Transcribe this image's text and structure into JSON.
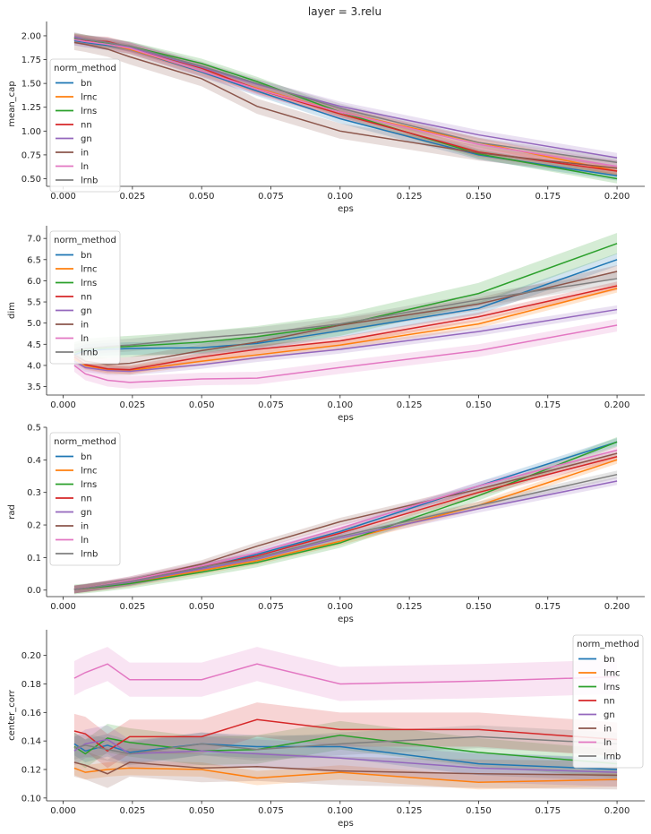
{
  "figure_title": "layer = 3.relu",
  "colors": {
    "bn": "#1f77b4",
    "lrnc": "#ff7f0e",
    "lrns": "#2ca02c",
    "nn": "#d62728",
    "gn": "#9467bd",
    "in": "#8c564b",
    "ln": "#e377c2",
    "lrnb": "#7f7f7f"
  },
  "chart_data": [
    {
      "type": "line",
      "xlabel": "eps",
      "ylabel": "mean_cap",
      "xlim": [
        -0.006,
        0.21
      ],
      "ylim": [
        0.42,
        2.15
      ],
      "xticks": [
        "0.000",
        "0.025",
        "0.050",
        "0.075",
        "0.100",
        "0.125",
        "0.150",
        "0.175",
        "0.200"
      ],
      "yticks": [
        "0.50",
        "0.75",
        "1.00",
        "1.25",
        "1.50",
        "1.75",
        "2.00"
      ],
      "legend_title": "norm_method",
      "legend_loc": "center-left",
      "x": [
        0.004,
        0.008,
        0.016,
        0.024,
        0.05,
        0.07,
        0.1,
        0.15,
        0.2
      ],
      "series": [
        {
          "name": "bn",
          "values": [
            1.95,
            1.93,
            1.9,
            1.86,
            1.62,
            1.42,
            1.13,
            0.75,
            0.53
          ],
          "band": 0.05
        },
        {
          "name": "lrnc",
          "values": [
            1.98,
            1.96,
            1.91,
            1.86,
            1.63,
            1.45,
            1.2,
            0.88,
            0.58
          ],
          "band": 0.05
        },
        {
          "name": "lrns",
          "values": [
            1.98,
            1.96,
            1.92,
            1.89,
            1.71,
            1.52,
            1.2,
            0.76,
            0.5
          ],
          "band": 0.05
        },
        {
          "name": "nn",
          "values": [
            1.97,
            1.95,
            1.94,
            1.88,
            1.66,
            1.44,
            1.18,
            0.78,
            0.58
          ],
          "band": 0.05
        },
        {
          "name": "gn",
          "values": [
            1.99,
            1.96,
            1.93,
            1.88,
            1.67,
            1.49,
            1.26,
            0.96,
            0.72
          ],
          "band": 0.05
        },
        {
          "name": "in",
          "values": [
            1.93,
            1.91,
            1.86,
            1.78,
            1.55,
            1.26,
            1.0,
            0.77,
            0.61
          ],
          "band": 0.08
        },
        {
          "name": "ln",
          "values": [
            1.96,
            1.94,
            1.91,
            1.87,
            1.63,
            1.44,
            1.2,
            0.86,
            0.63
          ],
          "band": 0.06
        },
        {
          "name": "lrnb",
          "values": [
            1.97,
            1.96,
            1.93,
            1.89,
            1.68,
            1.5,
            1.24,
            0.88,
            0.67
          ],
          "band": 0.05
        }
      ]
    },
    {
      "type": "line",
      "xlabel": "eps",
      "ylabel": "dim",
      "xlim": [
        -0.006,
        0.21
      ],
      "ylim": [
        3.3,
        7.3
      ],
      "xticks": [
        "0.000",
        "0.025",
        "0.050",
        "0.075",
        "0.100",
        "0.125",
        "0.150",
        "0.175",
        "0.200"
      ],
      "yticks": [
        "3.5",
        "4.0",
        "4.5",
        "5.0",
        "5.5",
        "6.0",
        "6.5",
        "7.0"
      ],
      "legend_title": "norm_method",
      "legend_loc": "upper-left",
      "x": [
        0.004,
        0.008,
        0.016,
        0.024,
        0.05,
        0.07,
        0.1,
        0.15,
        0.2
      ],
      "series": [
        {
          "name": "bn",
          "values": [
            4.25,
            4.35,
            4.38,
            4.4,
            4.42,
            4.52,
            4.82,
            5.35,
            6.5
          ],
          "band": 0.15
        },
        {
          "name": "lrnc",
          "values": [
            4.15,
            4.0,
            3.9,
            3.88,
            4.1,
            4.25,
            4.48,
            4.98,
            5.82
          ],
          "band": 0.1
        },
        {
          "name": "lrns",
          "values": [
            4.3,
            4.38,
            4.42,
            4.45,
            4.55,
            4.68,
            4.95,
            5.7,
            6.88
          ],
          "band": 0.25
        },
        {
          "name": "nn",
          "values": [
            4.2,
            4.02,
            3.92,
            3.9,
            4.2,
            4.38,
            4.58,
            5.15,
            5.88
          ],
          "band": 0.1
        },
        {
          "name": "gn",
          "values": [
            4.1,
            3.95,
            3.88,
            3.86,
            4.02,
            4.18,
            4.38,
            4.8,
            5.32
          ],
          "band": 0.1
        },
        {
          "name": "in",
          "values": [
            4.25,
            4.1,
            4.02,
            4.05,
            4.35,
            4.55,
            4.95,
            5.45,
            6.22
          ],
          "band": 0.15
        },
        {
          "name": "ln",
          "values": [
            4.0,
            3.8,
            3.65,
            3.6,
            3.68,
            3.7,
            3.95,
            4.35,
            4.95
          ],
          "band": 0.15
        },
        {
          "name": "lrnb",
          "values": [
            4.35,
            4.4,
            4.45,
            4.48,
            4.65,
            4.75,
            4.98,
            5.55,
            6.05
          ],
          "band": 0.15
        }
      ]
    },
    {
      "type": "line",
      "xlabel": "eps",
      "ylabel": "rad",
      "xlim": [
        -0.006,
        0.21
      ],
      "ylim": [
        -0.02,
        0.5
      ],
      "xticks": [
        "0.000",
        "0.025",
        "0.050",
        "0.075",
        "0.100",
        "0.125",
        "0.150",
        "0.175",
        "0.200"
      ],
      "yticks": [
        "0.0",
        "0.1",
        "0.2",
        "0.3",
        "0.4",
        "0.5"
      ],
      "legend_title": "norm_method",
      "legend_loc": "upper-left",
      "x": [
        0.004,
        0.008,
        0.016,
        0.024,
        0.05,
        0.07,
        0.1,
        0.15,
        0.2
      ],
      "series": [
        {
          "name": "bn",
          "values": [
            0.002,
            0.006,
            0.015,
            0.025,
            0.068,
            0.11,
            0.18,
            0.32,
            0.455
          ],
          "band": 0.012
        },
        {
          "name": "lrnc",
          "values": [
            0.002,
            0.005,
            0.013,
            0.022,
            0.06,
            0.09,
            0.15,
            0.26,
            0.4
          ],
          "band": 0.012
        },
        {
          "name": "lrns",
          "values": [
            0.002,
            0.005,
            0.012,
            0.02,
            0.055,
            0.085,
            0.145,
            0.29,
            0.455
          ],
          "band": 0.015
        },
        {
          "name": "nn",
          "values": [
            0.002,
            0.006,
            0.016,
            0.026,
            0.07,
            0.105,
            0.175,
            0.3,
            0.41
          ],
          "band": 0.012
        },
        {
          "name": "gn",
          "values": [
            0.002,
            0.006,
            0.015,
            0.024,
            0.065,
            0.095,
            0.16,
            0.25,
            0.335
          ],
          "band": 0.012
        },
        {
          "name": "in",
          "values": [
            0.002,
            0.007,
            0.018,
            0.03,
            0.08,
            0.135,
            0.21,
            0.31,
            0.42
          ],
          "band": 0.012
        },
        {
          "name": "ln",
          "values": [
            0.002,
            0.007,
            0.018,
            0.03,
            0.075,
            0.115,
            0.19,
            0.32,
            0.43
          ],
          "band": 0.012
        },
        {
          "name": "lrnb",
          "values": [
            0.002,
            0.006,
            0.016,
            0.026,
            0.07,
            0.1,
            0.165,
            0.26,
            0.355
          ],
          "band": 0.012
        }
      ]
    },
    {
      "type": "line",
      "xlabel": "eps",
      "ylabel": "center_corr",
      "xlim": [
        -0.006,
        0.21
      ],
      "ylim": [
        0.098,
        0.218
      ],
      "xticks": [
        "0.000",
        "0.025",
        "0.050",
        "0.075",
        "0.100",
        "0.125",
        "0.150",
        "0.175",
        "0.200"
      ],
      "yticks": [
        "0.10",
        "0.12",
        "0.14",
        "0.16",
        "0.18",
        "0.20"
      ],
      "legend_title": "norm_method",
      "legend_loc": "upper-right",
      "x": [
        0.004,
        0.008,
        0.016,
        0.024,
        0.05,
        0.07,
        0.1,
        0.15,
        0.2
      ],
      "series": [
        {
          "name": "bn",
          "values": [
            0.138,
            0.133,
            0.137,
            0.132,
            0.138,
            0.136,
            0.136,
            0.124,
            0.12
          ],
          "band": 0.008
        },
        {
          "name": "lrnc",
          "values": [
            0.121,
            0.118,
            0.12,
            0.121,
            0.12,
            0.114,
            0.118,
            0.111,
            0.113
          ],
          "band": 0.005
        },
        {
          "name": "lrns",
          "values": [
            0.136,
            0.131,
            0.142,
            0.139,
            0.133,
            0.134,
            0.144,
            0.132,
            0.124
          ],
          "band": 0.01
        },
        {
          "name": "nn",
          "values": [
            0.147,
            0.145,
            0.133,
            0.143,
            0.143,
            0.155,
            0.148,
            0.148,
            0.141
          ],
          "band": 0.012
        },
        {
          "name": "gn",
          "values": [
            0.133,
            0.138,
            0.141,
            0.131,
            0.133,
            0.131,
            0.128,
            0.121,
            0.118
          ],
          "band": 0.01
        },
        {
          "name": "in",
          "values": [
            0.125,
            0.123,
            0.117,
            0.125,
            0.121,
            0.122,
            0.119,
            0.117,
            0.116
          ],
          "band": 0.01
        },
        {
          "name": "ln",
          "values": [
            0.184,
            0.188,
            0.194,
            0.183,
            0.183,
            0.194,
            0.18,
            0.182,
            0.185
          ],
          "band": 0.012
        },
        {
          "name": "lrnb",
          "values": [
            0.135,
            0.137,
            0.134,
            0.131,
            0.138,
            0.134,
            0.138,
            0.143,
            0.138
          ],
          "band": 0.008
        }
      ]
    }
  ]
}
